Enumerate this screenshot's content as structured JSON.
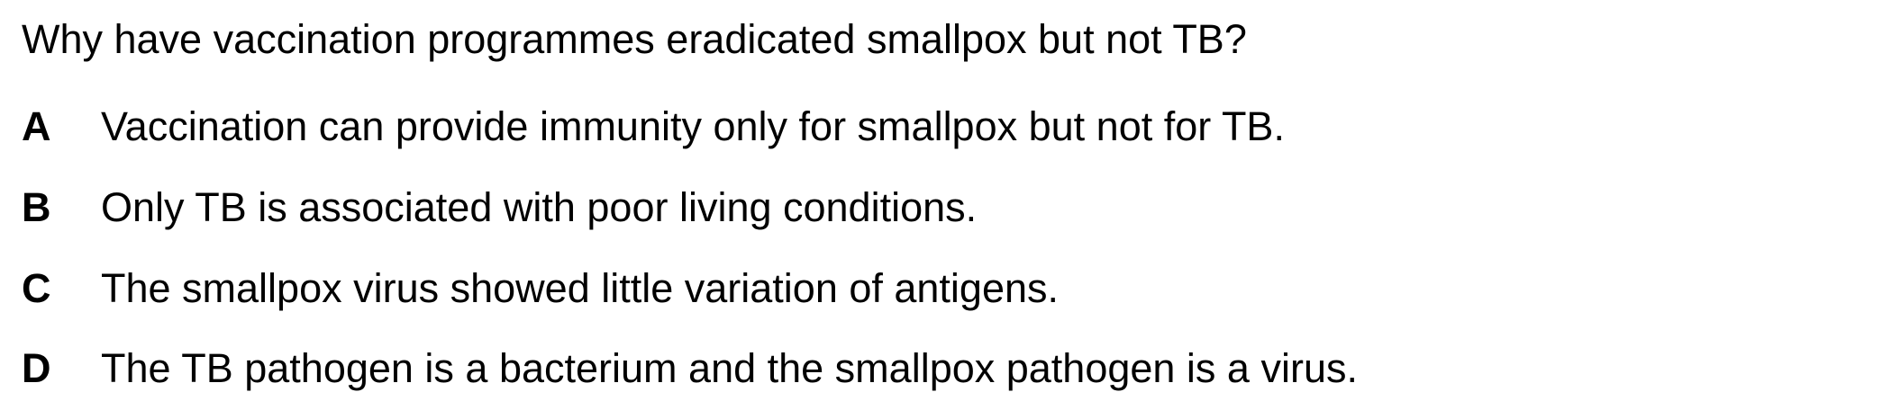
{
  "question": {
    "text": "Why have vaccination programmes eradicated smallpox but not TB?"
  },
  "options": [
    {
      "letter": "A",
      "text": "Vaccination can provide immunity only for smallpox but not for TB."
    },
    {
      "letter": "B",
      "text": "Only TB is associated with poor living conditions."
    },
    {
      "letter": "C",
      "text": "The smallpox virus showed little variation of antigens."
    },
    {
      "letter": "D",
      "text": "The TB pathogen is a bacterium and the smallpox pathogen is a virus."
    }
  ]
}
